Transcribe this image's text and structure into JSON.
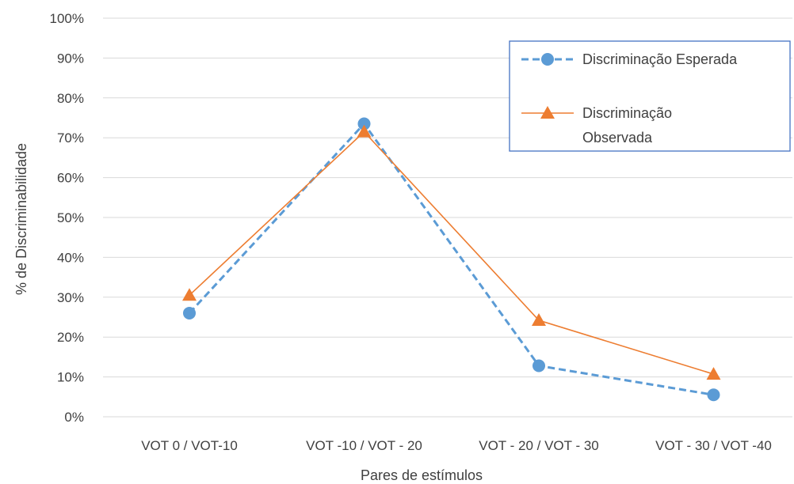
{
  "chart_data": {
    "type": "line",
    "title": "",
    "xlabel": "Pares de estímulos",
    "ylabel": "% de Discriminabilidade",
    "categories": [
      "VOT 0 / VOT-10",
      "VOT -10 / VOT - 20",
      "VOT - 20 / VOT - 30",
      "VOT - 30 / VOT -40"
    ],
    "ylim": [
      0,
      100
    ],
    "yticks": [
      "0%",
      "10%",
      "20%",
      "30%",
      "40%",
      "50%",
      "60%",
      "70%",
      "80%",
      "90%",
      "100%"
    ],
    "grid": true,
    "legend_position": "top-right",
    "series": [
      {
        "name": "Discriminação Esperada",
        "values": [
          26,
          73.5,
          12.8,
          5.5
        ],
        "color": "#5B9BD5",
        "marker": "circle",
        "line_style": "dashed"
      },
      {
        "name": "Discriminação Observada",
        "values": [
          30.5,
          71.5,
          24.2,
          10.7
        ],
        "color": "#ED7D31",
        "marker": "triangle",
        "line_style": "solid"
      }
    ],
    "legend_lines": [
      [
        "Discriminação Esperada"
      ],
      [
        "Discriminação",
        "Observada"
      ]
    ]
  }
}
